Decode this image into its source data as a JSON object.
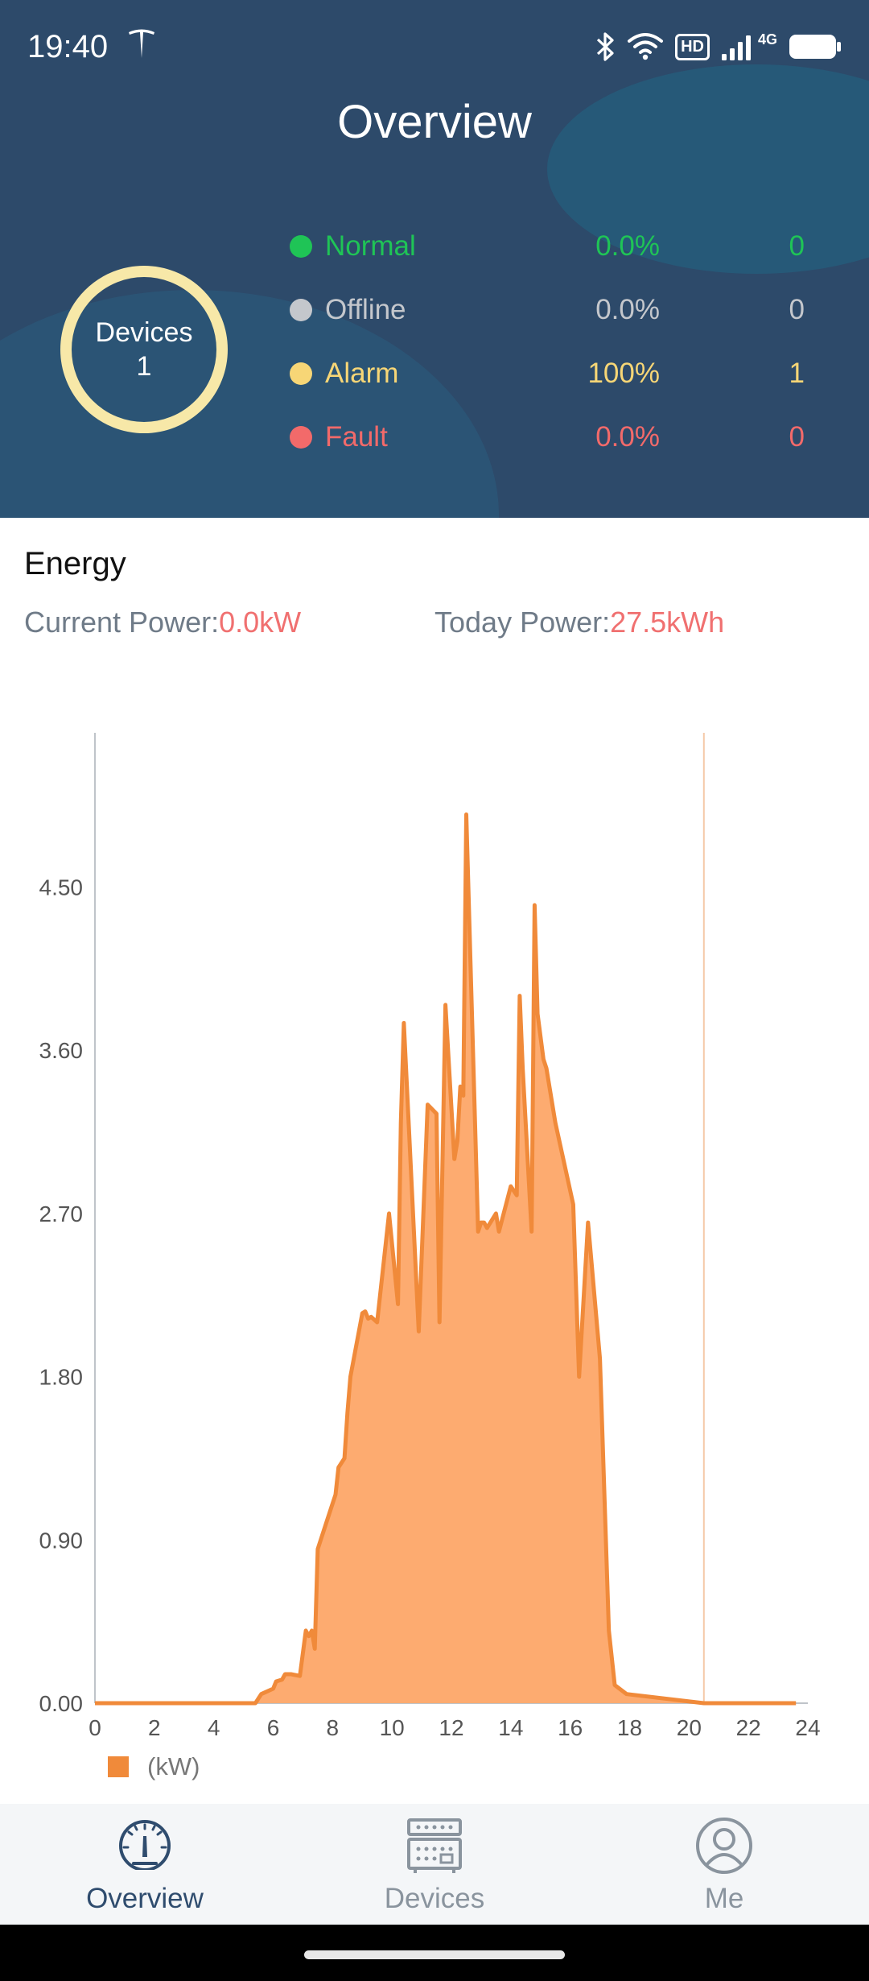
{
  "status_bar": {
    "time": "19:40",
    "network": "4G",
    "hd": "HD"
  },
  "header": {
    "title": "Overview"
  },
  "devices_ring": {
    "label": "Devices",
    "count": "1",
    "color": "#f7e8a8"
  },
  "status_rows": [
    {
      "label": "Normal",
      "percent": "0.0%",
      "count": "0",
      "color": "#1fc456"
    },
    {
      "label": "Offline",
      "percent": "0.0%",
      "count": "0",
      "color": "#c4c7cc"
    },
    {
      "label": "Alarm",
      "percent": "100%",
      "count": "1",
      "color": "#f7d676"
    },
    {
      "label": "Fault",
      "percent": "0.0%",
      "count": "0",
      "color": "#f26a6a"
    }
  ],
  "energy": {
    "title": "Energy",
    "current_power_label": "Current Power:",
    "current_power_value": "0.0kW",
    "today_power_label": "Today Power:",
    "today_power_value": "27.5kWh"
  },
  "chart_data": {
    "type": "area",
    "x_ticks": [
      "0",
      "2",
      "4",
      "6",
      "8",
      "10",
      "12",
      "14",
      "16",
      "18",
      "20",
      "22",
      "24"
    ],
    "y_ticks": [
      "0.00",
      "0.90",
      "1.80",
      "2.70",
      "3.60",
      "4.50"
    ],
    "xlim": [
      0,
      24
    ],
    "ylim": [
      0,
      5.35
    ],
    "legend": "(kW)",
    "cursor_x": 20.5,
    "line_color": "#f08a3a",
    "fill_color": "#fdab70",
    "x": [
      0,
      5.4,
      5.6,
      6.0,
      6.1,
      6.3,
      6.4,
      6.6,
      6.9,
      7.1,
      7.2,
      7.3,
      7.4,
      7.5,
      7.8,
      8.0,
      8.1,
      8.2,
      8.4,
      8.5,
      8.6,
      9.0,
      9.1,
      9.2,
      9.3,
      9.5,
      9.9,
      10.2,
      10.3,
      10.4,
      10.9,
      11.2,
      11.5,
      11.6,
      11.8,
      12.1,
      12.2,
      12.3,
      12.4,
      12.5,
      12.9,
      13.0,
      13.1,
      13.2,
      13.5,
      13.6,
      14.0,
      14.2,
      14.3,
      14.4,
      14.7,
      14.8,
      14.9,
      15.1,
      15.2,
      15.5,
      16.1,
      16.3,
      16.6,
      17.0,
      17.3,
      17.5,
      17.9,
      20.5,
      23.6
    ],
    "y": [
      0,
      0,
      0.05,
      0.08,
      0.12,
      0.13,
      0.16,
      0.16,
      0.15,
      0.4,
      0.37,
      0.4,
      0.3,
      0.85,
      1.0,
      1.1,
      1.15,
      1.3,
      1.35,
      1.6,
      1.8,
      2.15,
      2.16,
      2.12,
      2.13,
      2.1,
      2.7,
      2.2,
      3.2,
      3.75,
      2.05,
      3.3,
      3.25,
      2.1,
      3.85,
      3.0,
      3.1,
      3.4,
      3.35,
      4.9,
      2.6,
      2.65,
      2.65,
      2.62,
      2.7,
      2.6,
      2.85,
      2.8,
      3.9,
      3.5,
      2.6,
      4.4,
      3.8,
      3.55,
      3.5,
      3.2,
      2.75,
      1.8,
      2.65,
      1.9,
      0.4,
      0.1,
      0.05,
      0,
      0
    ]
  },
  "bottom_nav": [
    {
      "label": "Overview",
      "icon": "gauge-icon",
      "active": true
    },
    {
      "label": "Devices",
      "icon": "devices-icon",
      "active": false
    },
    {
      "label": "Me",
      "icon": "user-icon",
      "active": false
    }
  ],
  "colors": {
    "header_bg": "#2d4a6a",
    "nav_active": "#2f4c6e",
    "nav_inactive": "#8a949e",
    "accent_red": "#f07070"
  }
}
